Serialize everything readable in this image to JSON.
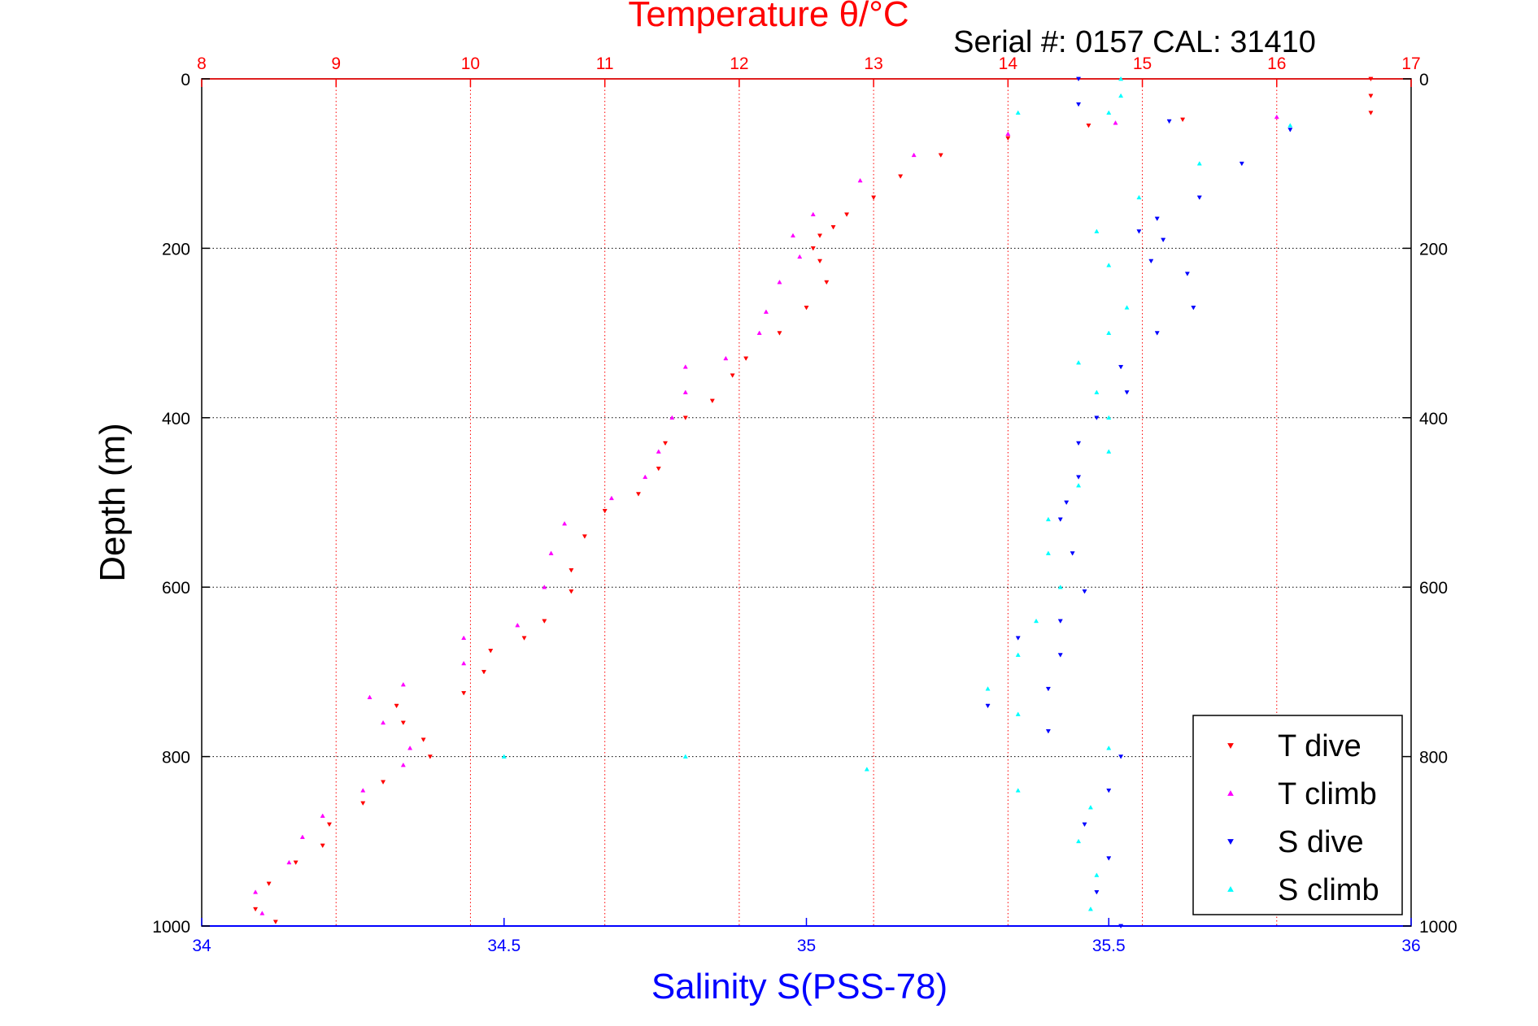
{
  "chart_data": {
    "type": "scatter",
    "title": "Temperature θ/°C",
    "subtitle": "Serial #: 0157  CAL: 31410",
    "ylabel": "Depth (m)",
    "xlabel": "Salinity S(PSS-78)",
    "top_axis": {
      "range": [
        8,
        17
      ],
      "ticks": [
        "8",
        "9",
        "10",
        "11",
        "12",
        "13",
        "14",
        "15",
        "16",
        "17"
      ],
      "color": "#ff0000"
    },
    "bottom_axis": {
      "range": [
        34,
        36
      ],
      "ticks": [
        "34",
        "34.5",
        "35",
        "35.5",
        "36"
      ],
      "color": "#0000ff"
    },
    "y_axis": {
      "range": [
        0,
        1000
      ],
      "inverted": true,
      "ticks": [
        "0",
        "200",
        "400",
        "600",
        "800",
        "1000"
      ]
    },
    "grid": true,
    "legend": {
      "position": "bottom-right"
    },
    "series": [
      {
        "name": "T dive",
        "axis": "temperature",
        "color": "#ff0000",
        "marker": "triangle-down",
        "points": [
          [
            16.7,
            0
          ],
          [
            16.7,
            20
          ],
          [
            16.7,
            40
          ],
          [
            15.3,
            48
          ],
          [
            14.6,
            55
          ],
          [
            14.0,
            70
          ],
          [
            13.5,
            90
          ],
          [
            13.2,
            115
          ],
          [
            13.0,
            140
          ],
          [
            12.8,
            160
          ],
          [
            12.7,
            175
          ],
          [
            12.6,
            185
          ],
          [
            12.55,
            200
          ],
          [
            12.6,
            215
          ],
          [
            12.65,
            240
          ],
          [
            12.5,
            270
          ],
          [
            12.3,
            300
          ],
          [
            12.05,
            330
          ],
          [
            11.95,
            350
          ],
          [
            11.8,
            380
          ],
          [
            11.6,
            400
          ],
          [
            11.45,
            430
          ],
          [
            11.4,
            460
          ],
          [
            11.25,
            490
          ],
          [
            11.0,
            510
          ],
          [
            10.85,
            540
          ],
          [
            10.75,
            580
          ],
          [
            10.75,
            605
          ],
          [
            10.55,
            640
          ],
          [
            10.4,
            660
          ],
          [
            10.15,
            675
          ],
          [
            10.1,
            700
          ],
          [
            9.95,
            725
          ],
          [
            9.45,
            740
          ],
          [
            9.5,
            760
          ],
          [
            9.65,
            780
          ],
          [
            9.7,
            800
          ],
          [
            9.35,
            830
          ],
          [
            9.2,
            855
          ],
          [
            8.95,
            880
          ],
          [
            8.9,
            905
          ],
          [
            8.7,
            925
          ],
          [
            8.5,
            950
          ],
          [
            8.4,
            980
          ],
          [
            8.55,
            995
          ]
        ]
      },
      {
        "name": "T climb",
        "axis": "temperature",
        "color": "#ff00ff",
        "marker": "triangle-up",
        "points": [
          [
            16.0,
            45
          ],
          [
            14.8,
            52
          ],
          [
            14.0,
            65
          ],
          [
            13.3,
            90
          ],
          [
            12.9,
            120
          ],
          [
            12.55,
            160
          ],
          [
            12.4,
            185
          ],
          [
            12.45,
            210
          ],
          [
            12.3,
            240
          ],
          [
            12.2,
            275
          ],
          [
            12.15,
            300
          ],
          [
            11.9,
            330
          ],
          [
            11.6,
            340
          ],
          [
            11.6,
            370
          ],
          [
            11.5,
            400
          ],
          [
            11.4,
            440
          ],
          [
            11.3,
            470
          ],
          [
            11.05,
            495
          ],
          [
            10.7,
            525
          ],
          [
            10.6,
            560
          ],
          [
            10.55,
            600
          ],
          [
            10.35,
            645
          ],
          [
            9.95,
            660
          ],
          [
            9.95,
            690
          ],
          [
            9.5,
            715
          ],
          [
            9.25,
            730
          ],
          [
            9.35,
            760
          ],
          [
            9.55,
            790
          ],
          [
            9.5,
            810
          ],
          [
            9.2,
            840
          ],
          [
            8.9,
            870
          ],
          [
            8.75,
            895
          ],
          [
            8.65,
            925
          ],
          [
            8.4,
            960
          ],
          [
            8.45,
            985
          ]
        ]
      },
      {
        "name": "S dive",
        "axis": "salinity",
        "color": "#0000ff",
        "marker": "triangle-down",
        "points": [
          [
            35.45,
            0
          ],
          [
            35.45,
            30
          ],
          [
            35.6,
            50
          ],
          [
            35.8,
            60
          ],
          [
            35.72,
            100
          ],
          [
            35.65,
            140
          ],
          [
            35.58,
            165
          ],
          [
            35.55,
            180
          ],
          [
            35.59,
            190
          ],
          [
            35.57,
            215
          ],
          [
            35.63,
            230
          ],
          [
            35.64,
            270
          ],
          [
            35.58,
            300
          ],
          [
            35.52,
            340
          ],
          [
            35.53,
            370
          ],
          [
            35.48,
            400
          ],
          [
            35.45,
            430
          ],
          [
            35.45,
            470
          ],
          [
            35.43,
            500
          ],
          [
            35.42,
            520
          ],
          [
            35.44,
            560
          ],
          [
            35.46,
            605
          ],
          [
            35.42,
            640
          ],
          [
            35.35,
            660
          ],
          [
            35.42,
            680
          ],
          [
            35.4,
            720
          ],
          [
            35.3,
            740
          ],
          [
            35.4,
            770
          ],
          [
            35.52,
            800
          ],
          [
            35.5,
            840
          ],
          [
            35.46,
            880
          ],
          [
            35.5,
            920
          ],
          [
            35.48,
            960
          ],
          [
            35.52,
            1000
          ]
        ]
      },
      {
        "name": "S climb",
        "axis": "salinity",
        "color": "#00ffff",
        "marker": "triangle-up",
        "points": [
          [
            35.52,
            0
          ],
          [
            35.52,
            20
          ],
          [
            35.5,
            40
          ],
          [
            35.35,
            40
          ],
          [
            35.8,
            55
          ],
          [
            35.65,
            100
          ],
          [
            35.55,
            140
          ],
          [
            35.48,
            180
          ],
          [
            35.5,
            220
          ],
          [
            35.53,
            270
          ],
          [
            35.5,
            300
          ],
          [
            35.45,
            335
          ],
          [
            35.48,
            370
          ],
          [
            35.5,
            400
          ],
          [
            35.5,
            440
          ],
          [
            35.45,
            480
          ],
          [
            35.4,
            520
          ],
          [
            35.4,
            560
          ],
          [
            35.42,
            600
          ],
          [
            35.38,
            640
          ],
          [
            35.35,
            680
          ],
          [
            35.3,
            720
          ],
          [
            35.35,
            750
          ],
          [
            35.5,
            790
          ],
          [
            34.5,
            800
          ],
          [
            34.8,
            800
          ],
          [
            35.1,
            815
          ],
          [
            35.35,
            840
          ],
          [
            35.47,
            860
          ],
          [
            35.45,
            900
          ],
          [
            35.48,
            940
          ],
          [
            35.47,
            980
          ]
        ]
      }
    ]
  }
}
